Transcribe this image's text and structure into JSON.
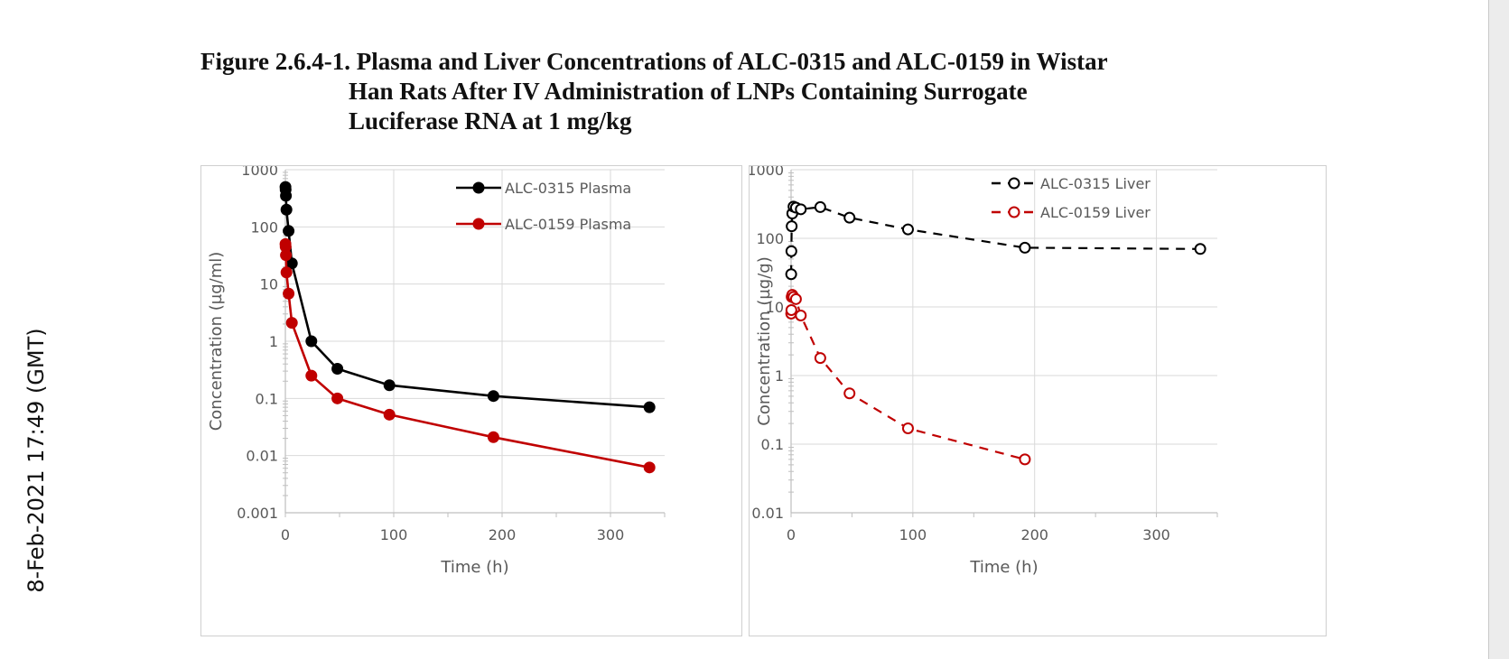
{
  "stamp": "8-Feb-2021 17:49 (GMT)",
  "figure": {
    "title_line1": "Figure 2.6.4-1. Plasma and Liver Concentrations of ALC-0315 and ALC-0159 in Wistar",
    "title_line2": "Han Rats After IV Administration of LNPs Containing Surrogate",
    "title_line3": "Luciferase RNA at 1 mg/kg"
  },
  "colors": {
    "black_series": "#000000",
    "red_series": "#c00000",
    "grid": "#d9d9d9",
    "axis": "#bfbfbf"
  },
  "chart_data": [
    {
      "type": "line",
      "xlabel": "Time (h)",
      "ylabel": "Concentration (µg/ml)",
      "xlim": [
        0,
        350
      ],
      "ylim": [
        0.001,
        1000
      ],
      "yscale": "log",
      "xticks": [
        0,
        100,
        200,
        300
      ],
      "yticks": [
        1000,
        100,
        10,
        1,
        0.1,
        0.01,
        0.001
      ],
      "ytick_labels": [
        "1000",
        "100",
        "10",
        "1",
        "0.1",
        "0.01",
        "0.001"
      ],
      "grid": true,
      "legend_position": "top-right",
      "series": [
        {
          "name": "ALC-0315 Plasma",
          "color": "#000000",
          "marker": "filled-circle",
          "line": "solid",
          "x": [
            0.1,
            0.25,
            0.5,
            1,
            3,
            6,
            24,
            48,
            96,
            192,
            336
          ],
          "y": [
            500,
            450,
            350,
            200,
            85,
            23,
            1.0,
            0.33,
            0.17,
            0.11,
            0.07
          ]
        },
        {
          "name": "ALC-0159 Plasma",
          "color": "#c00000",
          "marker": "filled-circle",
          "line": "solid",
          "x": [
            0.1,
            0.25,
            0.5,
            1,
            3,
            6,
            24,
            48,
            96,
            192,
            336
          ],
          "y": [
            50,
            45,
            32,
            16,
            6.8,
            2.1,
            0.25,
            0.1,
            0.052,
            0.021,
            0.0062
          ]
        }
      ]
    },
    {
      "type": "line",
      "xlabel": "Time (h)",
      "ylabel": "Concentration (µg/g)",
      "xlim": [
        0,
        350
      ],
      "ylim": [
        0.01,
        1000
      ],
      "yscale": "log",
      "xticks": [
        0,
        100,
        200,
        300
      ],
      "yticks": [
        1000,
        100,
        10,
        1,
        0.1,
        0.01
      ],
      "ytick_labels": [
        "1000",
        "100",
        "10",
        "1",
        "0.1",
        "0.01"
      ],
      "grid": true,
      "legend_position": "top-right",
      "series": [
        {
          "name": "ALC-0315 Liver",
          "color": "#000000",
          "marker": "open-circle",
          "line": "dashed",
          "x": [
            0.1,
            0.25,
            0.5,
            1,
            2,
            4,
            8,
            24,
            48,
            96,
            192,
            336
          ],
          "y": [
            30,
            65,
            150,
            230,
            290,
            280,
            265,
            285,
            200,
            135,
            73,
            70
          ]
        },
        {
          "name": "ALC-0159 Liver",
          "color": "#c00000",
          "marker": "open-circle",
          "line": "dashed",
          "x": [
            0.1,
            0.25,
            0.5,
            1,
            2,
            4,
            8,
            24,
            48,
            96,
            192
          ],
          "y": [
            8,
            9,
            14,
            15,
            14,
            13,
            7.5,
            1.8,
            0.55,
            0.17,
            0.06
          ]
        }
      ]
    }
  ]
}
